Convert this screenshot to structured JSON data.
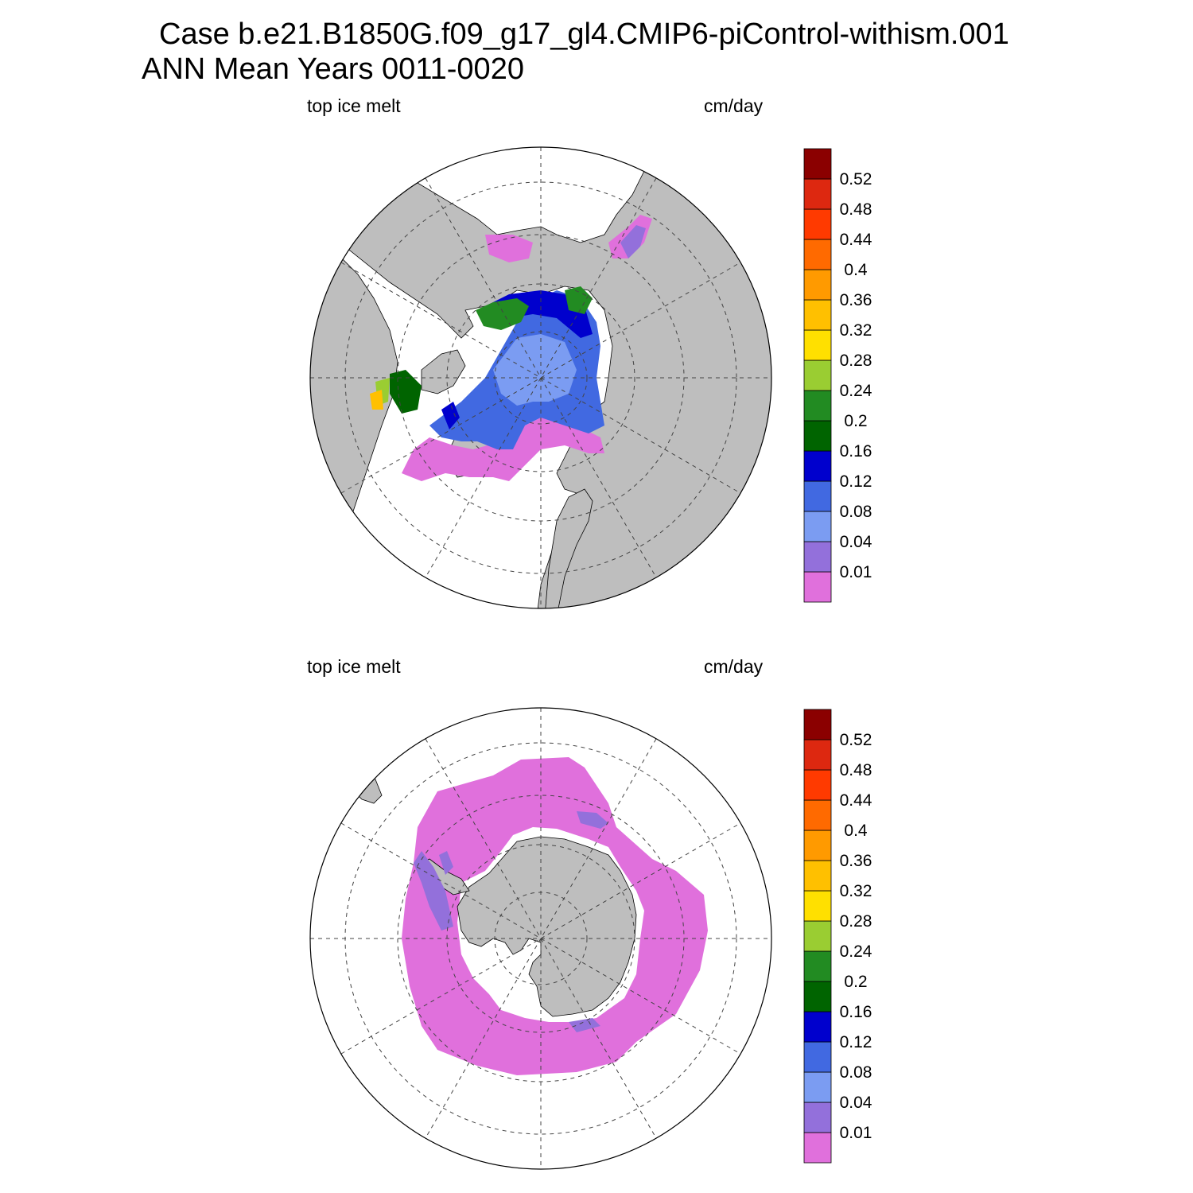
{
  "title": {
    "line1": "Case b.e21.B1850G.f09_g17_gl4.CMIP6-piControl-withism.001",
    "line2": "ANN Mean     Years 0011-0020"
  },
  "panels": [
    {
      "id": "north",
      "hemisphere": "Northern Hemisphere polar stereographic",
      "left_label": "top ice melt",
      "right_label": "cm/day"
    },
    {
      "id": "south",
      "hemisphere": "Southern Hemisphere polar stereographic",
      "left_label": "top ice melt",
      "right_label": "cm/day"
    }
  ],
  "colorbar": {
    "levels": [
      "0.01",
      "0.04",
      "0.08",
      "0.12",
      "0.16",
      "0.2",
      "0.24",
      "0.28",
      "0.32",
      "0.36",
      "0.4",
      "0.44",
      "0.48",
      "0.52"
    ],
    "colors": [
      "#e070dc",
      "#9370db",
      "#7b9cf2",
      "#4169e1",
      "#0000cd",
      "#006400",
      "#228b22",
      "#9acd32",
      "#ffe000",
      "#ffc000",
      "#ff9a00",
      "#ff6a00",
      "#ff3a00",
      "#dd2810",
      "#8b0000"
    ]
  },
  "styles": {
    "land": "#bebebe",
    "ocean": "#ffffff",
    "grid": "#444444"
  }
}
